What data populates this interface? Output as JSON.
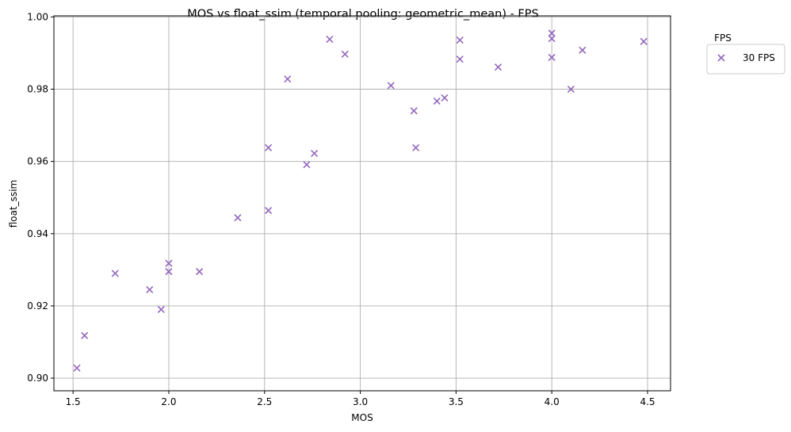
{
  "chart_data": {
    "type": "scatter",
    "title": "MOS vs float_ssim (temporal pooling: geometric_mean) - FPS",
    "xlabel": "MOS",
    "ylabel": "float_ssim",
    "xlim": [
      1.4,
      4.62
    ],
    "ylim": [
      0.8965,
      1.0003
    ],
    "xticks": [
      1.5,
      2.0,
      2.5,
      3.0,
      3.5,
      4.0,
      4.5
    ],
    "xtick_labels": [
      "1.5",
      "2.0",
      "2.5",
      "3.0",
      "3.5",
      "4.0",
      "4.5"
    ],
    "yticks": [
      0.9,
      0.92,
      0.94,
      0.96,
      0.98,
      1.0
    ],
    "ytick_labels": [
      "0.90",
      "0.92",
      "0.94",
      "0.96",
      "0.98",
      "1.00"
    ],
    "grid": true,
    "legend": {
      "title": "FPS",
      "placement": "outside-upper-right"
    },
    "series": [
      {
        "name": "30 FPS",
        "marker": "x",
        "color": "#9467bd",
        "points": [
          [
            1.52,
            0.9028
          ],
          [
            1.56,
            0.9118
          ],
          [
            1.72,
            0.929
          ],
          [
            1.9,
            0.9245
          ],
          [
            1.96,
            0.919
          ],
          [
            2.0,
            0.9318
          ],
          [
            2.0,
            0.9295
          ],
          [
            2.16,
            0.9295
          ],
          [
            2.36,
            0.9444
          ],
          [
            2.52,
            0.9638
          ],
          [
            2.52,
            0.9464
          ],
          [
            2.62,
            0.9828
          ],
          [
            2.72,
            0.9591
          ],
          [
            2.76,
            0.9622
          ],
          [
            2.84,
            0.9938
          ],
          [
            2.92,
            0.9897
          ],
          [
            3.16,
            0.981
          ],
          [
            3.28,
            0.974
          ],
          [
            3.29,
            0.9638
          ],
          [
            3.4,
            0.9767
          ],
          [
            3.44,
            0.9776
          ],
          [
            3.52,
            0.9936
          ],
          [
            3.52,
            0.9883
          ],
          [
            3.72,
            0.9861
          ],
          [
            4.0,
            0.9955
          ],
          [
            4.0,
            0.994
          ],
          [
            4.0,
            0.9888
          ],
          [
            4.1,
            0.98
          ],
          [
            4.16,
            0.9908
          ],
          [
            4.48,
            0.9932
          ]
        ]
      }
    ]
  }
}
